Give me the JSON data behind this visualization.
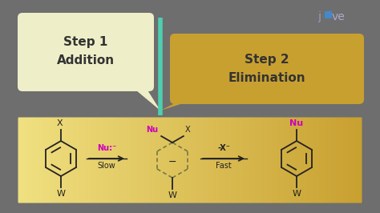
{
  "bg_color": "#6E6E6E",
  "teal_line_color": "#4DCFB0",
  "bubble1_color": "#EEEEC8",
  "bubble2_color": "#C8A030",
  "box_grad_left": "#F0E080",
  "box_grad_right": "#C8A030",
  "box_color": "#D4B840",
  "arrow_color": "#222222",
  "magenta_color": "#CC00BB",
  "dark_color": "#222222",
  "step1_line1": "Step 1",
  "step1_line2": "Addition",
  "step2_line1": "Step 2",
  "step2_line2": "Elimination",
  "figsize": [
    4.74,
    2.66
  ],
  "dpi": 100
}
